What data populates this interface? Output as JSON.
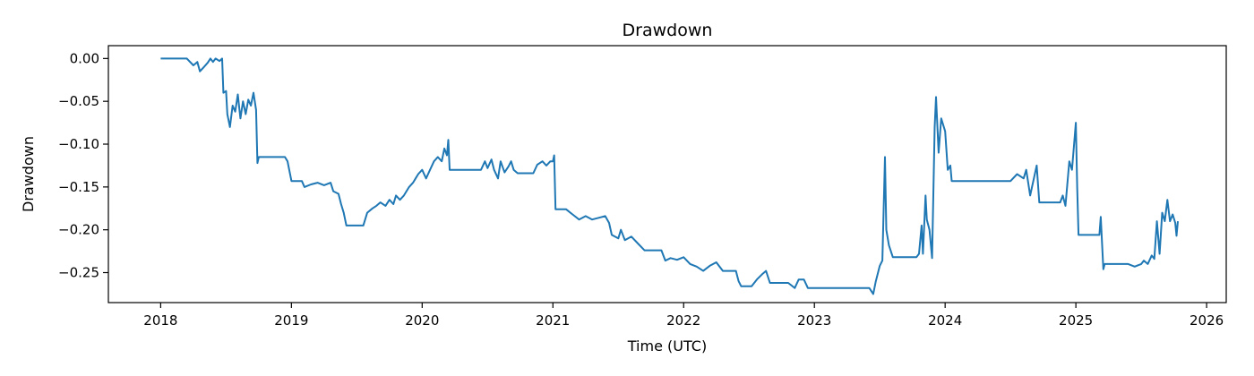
{
  "chart_data": {
    "type": "line",
    "title": "Drawdown",
    "xlabel": "Time (UTC)",
    "ylabel": "Drawdown",
    "xlim": [
      2017.6,
      2026.15
    ],
    "ylim": [
      -0.285,
      0.015
    ],
    "x_ticks": [
      2018,
      2019,
      2020,
      2021,
      2022,
      2023,
      2024,
      2025,
      2026
    ],
    "x_tick_labels": [
      "2018",
      "2019",
      "2020",
      "2021",
      "2022",
      "2023",
      "2024",
      "2025",
      "2026"
    ],
    "y_ticks": [
      0.0,
      -0.05,
      -0.1,
      -0.15,
      -0.2,
      -0.25
    ],
    "y_tick_labels": [
      "0.00",
      "−0.05",
      "−0.10",
      "−0.15",
      "−0.20",
      "−0.25"
    ],
    "grid": false,
    "series": [
      {
        "color": "#1f77b4",
        "points": [
          [
            2018.0,
            0.0
          ],
          [
            2018.2,
            0.0
          ],
          [
            2018.25,
            -0.008
          ],
          [
            2018.28,
            -0.004
          ],
          [
            2018.3,
            -0.015
          ],
          [
            2018.33,
            -0.01
          ],
          [
            2018.36,
            -0.005
          ],
          [
            2018.38,
            0.0
          ],
          [
            2018.4,
            -0.004
          ],
          [
            2018.42,
            0.0
          ],
          [
            2018.45,
            -0.003
          ],
          [
            2018.47,
            0.0
          ],
          [
            2018.48,
            -0.04
          ],
          [
            2018.5,
            -0.038
          ],
          [
            2018.51,
            -0.065
          ],
          [
            2018.53,
            -0.08
          ],
          [
            2018.55,
            -0.055
          ],
          [
            2018.57,
            -0.062
          ],
          [
            2018.59,
            -0.042
          ],
          [
            2018.61,
            -0.07
          ],
          [
            2018.63,
            -0.05
          ],
          [
            2018.65,
            -0.065
          ],
          [
            2018.67,
            -0.048
          ],
          [
            2018.69,
            -0.055
          ],
          [
            2018.71,
            -0.04
          ],
          [
            2018.73,
            -0.06
          ],
          [
            2018.74,
            -0.122
          ],
          [
            2018.75,
            -0.115
          ],
          [
            2018.95,
            -0.115
          ],
          [
            2018.97,
            -0.12
          ],
          [
            2019.0,
            -0.143
          ],
          [
            2019.08,
            -0.143
          ],
          [
            2019.1,
            -0.15
          ],
          [
            2019.15,
            -0.147
          ],
          [
            2019.2,
            -0.145
          ],
          [
            2019.25,
            -0.148
          ],
          [
            2019.3,
            -0.145
          ],
          [
            2019.32,
            -0.155
          ],
          [
            2019.36,
            -0.158
          ],
          [
            2019.38,
            -0.17
          ],
          [
            2019.4,
            -0.18
          ],
          [
            2019.42,
            -0.195
          ],
          [
            2019.55,
            -0.195
          ],
          [
            2019.58,
            -0.18
          ],
          [
            2019.62,
            -0.175
          ],
          [
            2019.65,
            -0.172
          ],
          [
            2019.68,
            -0.168
          ],
          [
            2019.72,
            -0.172
          ],
          [
            2019.75,
            -0.165
          ],
          [
            2019.78,
            -0.17
          ],
          [
            2019.8,
            -0.16
          ],
          [
            2019.83,
            -0.165
          ],
          [
            2019.86,
            -0.16
          ],
          [
            2019.9,
            -0.15
          ],
          [
            2019.93,
            -0.145
          ],
          [
            2019.95,
            -0.14
          ],
          [
            2019.97,
            -0.135
          ],
          [
            2020.0,
            -0.13
          ],
          [
            2020.03,
            -0.14
          ],
          [
            2020.06,
            -0.13
          ],
          [
            2020.09,
            -0.12
          ],
          [
            2020.12,
            -0.115
          ],
          [
            2020.15,
            -0.12
          ],
          [
            2020.17,
            -0.105
          ],
          [
            2020.19,
            -0.113
          ],
          [
            2020.2,
            -0.095
          ],
          [
            2020.21,
            -0.13
          ],
          [
            2020.45,
            -0.13
          ],
          [
            2020.48,
            -0.12
          ],
          [
            2020.5,
            -0.128
          ],
          [
            2020.53,
            -0.118
          ],
          [
            2020.55,
            -0.13
          ],
          [
            2020.58,
            -0.14
          ],
          [
            2020.6,
            -0.12
          ],
          [
            2020.63,
            -0.133
          ],
          [
            2020.66,
            -0.126
          ],
          [
            2020.68,
            -0.12
          ],
          [
            2020.7,
            -0.13
          ],
          [
            2020.73,
            -0.134
          ],
          [
            2020.85,
            -0.134
          ],
          [
            2020.88,
            -0.124
          ],
          [
            2020.92,
            -0.12
          ],
          [
            2020.95,
            -0.125
          ],
          [
            2020.98,
            -0.12
          ],
          [
            2021.0,
            -0.12
          ],
          [
            2021.01,
            -0.113
          ],
          [
            2021.02,
            -0.176
          ],
          [
            2021.1,
            -0.176
          ],
          [
            2021.15,
            -0.182
          ],
          [
            2021.2,
            -0.188
          ],
          [
            2021.25,
            -0.184
          ],
          [
            2021.3,
            -0.188
          ],
          [
            2021.35,
            -0.186
          ],
          [
            2021.4,
            -0.184
          ],
          [
            2021.43,
            -0.192
          ],
          [
            2021.45,
            -0.206
          ],
          [
            2021.5,
            -0.21
          ],
          [
            2021.52,
            -0.2
          ],
          [
            2021.55,
            -0.212
          ],
          [
            2021.6,
            -0.208
          ],
          [
            2021.65,
            -0.216
          ],
          [
            2021.7,
            -0.224
          ],
          [
            2021.83,
            -0.224
          ],
          [
            2021.86,
            -0.236
          ],
          [
            2021.9,
            -0.233
          ],
          [
            2021.95,
            -0.235
          ],
          [
            2022.0,
            -0.232
          ],
          [
            2022.05,
            -0.24
          ],
          [
            2022.1,
            -0.243
          ],
          [
            2022.15,
            -0.248
          ],
          [
            2022.2,
            -0.242
          ],
          [
            2022.25,
            -0.238
          ],
          [
            2022.3,
            -0.248
          ],
          [
            2022.4,
            -0.248
          ],
          [
            2022.42,
            -0.26
          ],
          [
            2022.44,
            -0.266
          ],
          [
            2022.52,
            -0.266
          ],
          [
            2022.56,
            -0.258
          ],
          [
            2022.6,
            -0.252
          ],
          [
            2022.63,
            -0.248
          ],
          [
            2022.66,
            -0.262
          ],
          [
            2022.8,
            -0.262
          ],
          [
            2022.85,
            -0.268
          ],
          [
            2022.88,
            -0.258
          ],
          [
            2022.92,
            -0.258
          ],
          [
            2022.95,
            -0.268
          ],
          [
            2023.35,
            -0.268
          ],
          [
            2023.42,
            -0.268
          ],
          [
            2023.45,
            -0.275
          ],
          [
            2023.47,
            -0.26
          ],
          [
            2023.5,
            -0.242
          ],
          [
            2023.52,
            -0.236
          ],
          [
            2023.54,
            -0.115
          ],
          [
            2023.55,
            -0.2
          ],
          [
            2023.57,
            -0.218
          ],
          [
            2023.6,
            -0.232
          ],
          [
            2023.78,
            -0.232
          ],
          [
            2023.8,
            -0.228
          ],
          [
            2023.82,
            -0.195
          ],
          [
            2023.83,
            -0.228
          ],
          [
            2023.85,
            -0.16
          ],
          [
            2023.86,
            -0.188
          ],
          [
            2023.88,
            -0.2
          ],
          [
            2023.9,
            -0.233
          ],
          [
            2023.92,
            -0.08
          ],
          [
            2023.93,
            -0.045
          ],
          [
            2023.95,
            -0.11
          ],
          [
            2023.97,
            -0.07
          ],
          [
            2024.0,
            -0.085
          ],
          [
            2024.02,
            -0.13
          ],
          [
            2024.04,
            -0.125
          ],
          [
            2024.05,
            -0.143
          ],
          [
            2024.5,
            -0.143
          ],
          [
            2024.55,
            -0.135
          ],
          [
            2024.6,
            -0.14
          ],
          [
            2024.62,
            -0.13
          ],
          [
            2024.65,
            -0.16
          ],
          [
            2024.7,
            -0.125
          ],
          [
            2024.72,
            -0.168
          ],
          [
            2024.88,
            -0.168
          ],
          [
            2024.9,
            -0.16
          ],
          [
            2024.92,
            -0.172
          ],
          [
            2024.95,
            -0.12
          ],
          [
            2024.97,
            -0.13
          ],
          [
            2025.0,
            -0.075
          ],
          [
            2025.01,
            -0.15
          ],
          [
            2025.02,
            -0.206
          ],
          [
            2025.18,
            -0.206
          ],
          [
            2025.19,
            -0.185
          ],
          [
            2025.21,
            -0.246
          ],
          [
            2025.22,
            -0.24
          ],
          [
            2025.4,
            -0.24
          ],
          [
            2025.45,
            -0.243
          ],
          [
            2025.5,
            -0.24
          ],
          [
            2025.52,
            -0.236
          ],
          [
            2025.55,
            -0.24
          ],
          [
            2025.58,
            -0.23
          ],
          [
            2025.6,
            -0.234
          ],
          [
            2025.62,
            -0.19
          ],
          [
            2025.64,
            -0.228
          ],
          [
            2025.66,
            -0.18
          ],
          [
            2025.68,
            -0.19
          ],
          [
            2025.7,
            -0.165
          ],
          [
            2025.72,
            -0.19
          ],
          [
            2025.74,
            -0.182
          ],
          [
            2025.76,
            -0.192
          ],
          [
            2025.77,
            -0.207
          ],
          [
            2025.78,
            -0.19
          ]
        ]
      }
    ]
  }
}
